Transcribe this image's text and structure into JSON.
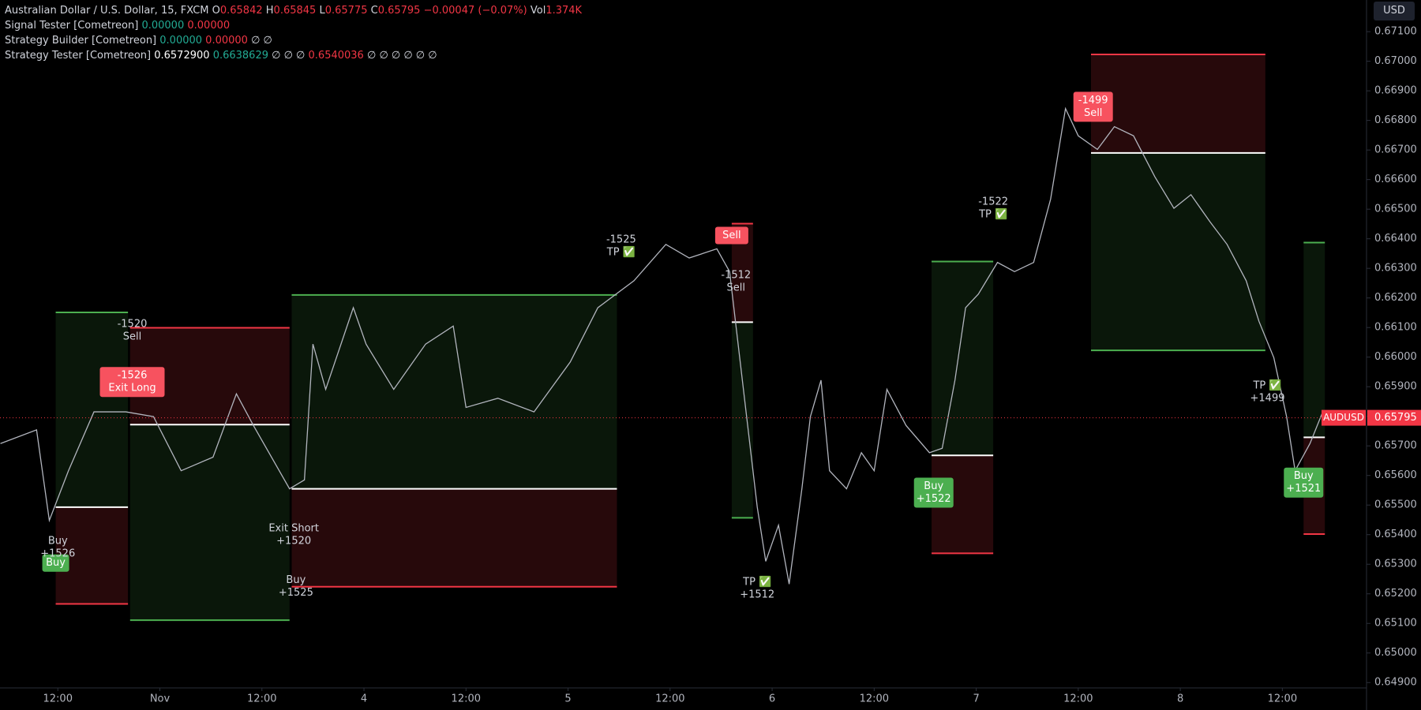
{
  "header": {
    "symbol": "Australian Dollar / U.S. Dollar, 15, FXCM",
    "open_label": "O",
    "open": "0.65842",
    "high_label": "H",
    "high": "0.65845",
    "low_label": "L",
    "low": "0.65775",
    "close_label": "C",
    "close": "0.65795",
    "change": "−0.00047 (−0.07%)",
    "vol_label": "Vol",
    "vol": "1.374K"
  },
  "indicators": [
    {
      "name": "Signal Tester [Cometreon]",
      "values": [
        {
          "text": "0.00000",
          "tone": "g"
        },
        {
          "text": "0.00000",
          "tone": "r"
        }
      ]
    },
    {
      "name": "Strategy Builder [Cometreon]",
      "values": [
        {
          "text": "0.00000",
          "tone": "g"
        },
        {
          "text": "0.00000",
          "tone": "r"
        },
        {
          "text": "∅ ∅",
          "tone": ""
        }
      ]
    },
    {
      "name": "Strategy Tester [Cometreon]",
      "values": [
        {
          "text": "0.6572900",
          "tone": "w"
        },
        {
          "text": "0.6638629",
          "tone": "g"
        },
        {
          "text": "∅ ∅ ∅",
          "tone": ""
        },
        {
          "text": "0.6540036",
          "tone": "r"
        },
        {
          "text": "∅ ∅ ∅ ∅ ∅ ∅",
          "tone": ""
        }
      ]
    }
  ],
  "currency_button": "USD",
  "chart_data": {
    "type": "line",
    "series": [
      {
        "name": "AUDUSD",
        "color": "#b2b5be",
        "x": [
          -6.75,
          -2.5,
          -1,
          1.25,
          4.25,
          8,
          11.25,
          14.5,
          18.25,
          21,
          23,
          27.25,
          29,
          30,
          31.5,
          34.75,
          36.25,
          39.5,
          43.25,
          46.5,
          48,
          51.75,
          56,
          60.25,
          63.5,
          67.75,
          71.5,
          74.25,
          77.5,
          79,
          80,
          81,
          82.25,
          83.25,
          84.75,
          86,
          87.5,
          88.5,
          89.75,
          90.75,
          92.75,
          94.5,
          96,
          97.5,
          99.75,
          102.5,
          104,
          105.5,
          106.75,
          108.25,
          110.5,
          112.5,
          114.75,
          116.75,
          118.5,
          120,
          122.25,
          124.25,
          126.5,
          129,
          131.25,
          133.25,
          135.5,
          137.5,
          139.75,
          141.25,
          143,
          144.5,
          145.5,
          147.25,
          148.75
        ],
        "values": [
          0.65708,
          0.65754,
          0.65448,
          0.65616,
          0.65815,
          0.65815,
          0.65799,
          0.65616,
          0.65662,
          0.65876,
          0.65769,
          0.65555,
          0.65585,
          0.66044,
          0.65891,
          0.66167,
          0.66044,
          0.65891,
          0.66044,
          0.66105,
          0.6583,
          0.65861,
          0.65815,
          0.65983,
          0.66167,
          0.66258,
          0.66381,
          0.66335,
          0.66366,
          0.66289,
          0.66044,
          0.65799,
          0.65493,
          0.6531,
          0.65432,
          0.65233,
          0.65555,
          0.65799,
          0.65922,
          0.65616,
          0.65555,
          0.65677,
          0.65616,
          0.65891,
          0.65769,
          0.65677,
          0.65692,
          0.65922,
          0.66167,
          0.66213,
          0.6632,
          0.66289,
          0.6632,
          0.66534,
          0.6684,
          0.66748,
          0.66702,
          0.66779,
          0.66748,
          0.6661,
          0.66503,
          0.66549,
          0.66457,
          0.66381,
          0.66258,
          0.66121,
          0.65998,
          0.65799,
          0.65616,
          0.65708,
          0.65815
        ]
      }
    ],
    "last_price": 0.65795,
    "positions": [
      {
        "x0": -0.25,
        "x1": 8.25,
        "entry": 0.65493,
        "tp": 0.66151,
        "sl": 0.65166
      },
      {
        "x0": 8.5,
        "x1": 27.25,
        "entry": 0.65772,
        "tp": 0.65111,
        "sl": 0.66099
      },
      {
        "x0": 27.5,
        "x1": 65.75,
        "entry": 0.65555,
        "tp": 0.6621,
        "sl": 0.65224
      },
      {
        "x0": 79.25,
        "x1": 81.75,
        "entry": 0.66118,
        "tp": 0.65457,
        "sl": 0.66451
      },
      {
        "x0": 102.75,
        "x1": 110,
        "entry": 0.65668,
        "tp": 0.66323,
        "sl": 0.65337
      },
      {
        "x0": 121.5,
        "x1": 142,
        "entry": 0.6669,
        "tp": 0.66023,
        "sl": 0.67023
      },
      {
        "x0": 146.5,
        "x1": 149,
        "entry": 0.65729,
        "tp": 0.66387,
        "sl": 0.65402
      }
    ],
    "annotations": [
      {
        "lines": [
          "Buy"
        ],
        "x": -0.25,
        "y": 0.65304,
        "style": "buy"
      },
      {
        "lines": [
          "Buy",
          "+1526"
        ],
        "x": 0,
        "y": 0.65356,
        "style": "plain"
      },
      {
        "lines": [
          "-1520",
          "Sell"
        ],
        "x": 8.75,
        "y": 0.6609,
        "style": "plain"
      },
      {
        "lines": [
          "-1526",
          "Exit Long"
        ],
        "x": 8.75,
        "y": 0.65916,
        "style": "sell"
      },
      {
        "lines": [
          "Exit Short",
          "+1520"
        ],
        "x": 27.75,
        "y": 0.65399,
        "style": "plain"
      },
      {
        "lines": [
          "Buy",
          "+1525"
        ],
        "x": 28,
        "y": 0.65224,
        "style": "plain"
      },
      {
        "lines": [
          "-1525",
          "TP ✅"
        ],
        "x": 66.25,
        "y": 0.66375,
        "style": "plain"
      },
      {
        "lines": [
          "Sell"
        ],
        "x": 79.25,
        "y": 0.66411,
        "style": "sell"
      },
      {
        "lines": [
          "-1512",
          "Sell"
        ],
        "x": 79.75,
        "y": 0.66255,
        "style": "plain"
      },
      {
        "lines": [
          "TP ✅",
          "+1512"
        ],
        "x": 82.25,
        "y": 0.65218,
        "style": "plain"
      },
      {
        "lines": [
          "-1522",
          "TP ✅"
        ],
        "x": 110,
        "y": 0.66503,
        "style": "plain"
      },
      {
        "lines": [
          "Buy",
          "+1522"
        ],
        "x": 103,
        "y": 0.65542,
        "style": "buy"
      },
      {
        "lines": [
          "-1499",
          "Sell"
        ],
        "x": 121.75,
        "y": 0.66846,
        "style": "sell"
      },
      {
        "lines": [
          "TP ✅",
          "+1499"
        ],
        "x": 142.25,
        "y": 0.65882,
        "style": "plain"
      },
      {
        "lines": [
          "Buy",
          "+1521"
        ],
        "x": 146.5,
        "y": 0.65576,
        "style": "buy"
      }
    ],
    "xlim": [
      -6.8,
      153.9
    ],
    "xticks": [
      {
        "value": 0,
        "label": "12:00"
      },
      {
        "value": 12,
        "label": "Nov"
      },
      {
        "value": 24,
        "label": "12:00"
      },
      {
        "value": 36,
        "label": "4"
      },
      {
        "value": 48,
        "label": "12:00"
      },
      {
        "value": 60,
        "label": "5"
      },
      {
        "value": 72,
        "label": "12:00"
      },
      {
        "value": 84,
        "label": "6"
      },
      {
        "value": 96,
        "label": "12:00"
      },
      {
        "value": 108,
        "label": "7"
      },
      {
        "value": 120,
        "label": "12:00"
      },
      {
        "value": 132,
        "label": "8"
      },
      {
        "value": 144,
        "label": "12:00"
      }
    ],
    "ylim": [
      0.64882,
      0.67207
    ],
    "yticks": [
      {
        "value": 0.649,
        "label": "0.64900"
      },
      {
        "value": 0.65,
        "label": "0.65000"
      },
      {
        "value": 0.651,
        "label": "0.65100"
      },
      {
        "value": 0.652,
        "label": "0.65200"
      },
      {
        "value": 0.653,
        "label": "0.65300"
      },
      {
        "value": 0.654,
        "label": "0.65400"
      },
      {
        "value": 0.655,
        "label": "0.65500"
      },
      {
        "value": 0.656,
        "label": "0.65600"
      },
      {
        "value": 0.657,
        "label": "0.65700"
      },
      {
        "value": 0.658,
        "label": "0.65800"
      },
      {
        "value": 0.659,
        "label": "0.65900"
      },
      {
        "value": 0.66,
        "label": "0.66000"
      },
      {
        "value": 0.661,
        "label": "0.66100"
      },
      {
        "value": 0.662,
        "label": "0.66200"
      },
      {
        "value": 0.663,
        "label": "0.66300"
      },
      {
        "value": 0.664,
        "label": "0.66400"
      },
      {
        "value": 0.665,
        "label": "0.66500"
      },
      {
        "value": 0.666,
        "label": "0.66600"
      },
      {
        "value": 0.667,
        "label": "0.66700"
      },
      {
        "value": 0.668,
        "label": "0.66800"
      },
      {
        "value": 0.669,
        "label": "0.66900"
      },
      {
        "value": 0.67,
        "label": "0.67000"
      },
      {
        "value": 0.671,
        "label": "0.67100"
      }
    ]
  }
}
